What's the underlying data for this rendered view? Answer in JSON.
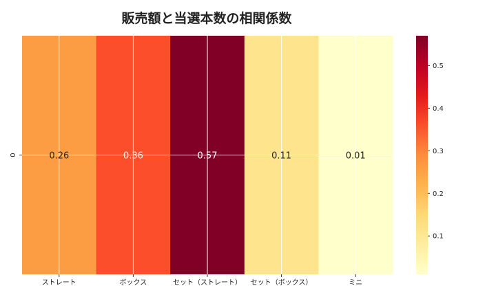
{
  "chart_data": {
    "type": "heatmap",
    "title": "販売額と当選本数の相関係数",
    "rows": [
      "0"
    ],
    "columns": [
      "ストレート",
      "ボックス",
      "セット（ストレート）",
      "セット（ボックス）",
      "ミニ"
    ],
    "values": [
      [
        0.26,
        0.36,
        0.57,
        0.11,
        0.01
      ]
    ],
    "annotations": [
      "0.26",
      "0.36",
      "0.57",
      "0.11",
      "0.01"
    ],
    "colormap": "YlOrRd",
    "colorbar": {
      "range": [
        0.01,
        0.57
      ],
      "ticks": [
        0.1,
        0.2,
        0.3,
        0.4,
        0.5
      ],
      "tick_labels": [
        "0.1",
        "0.2",
        "0.3",
        "0.4",
        "0.5"
      ]
    },
    "grid": true
  }
}
